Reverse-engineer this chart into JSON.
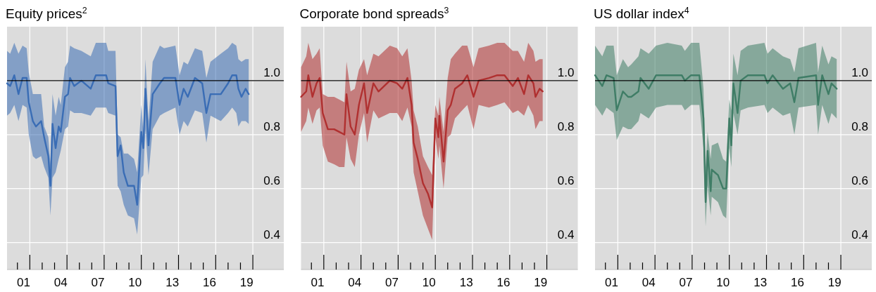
{
  "chart_data": [
    {
      "type": "line",
      "title": "Equity prices$^{2}$",
      "xlim": [
        "2000-03",
        "2022-07"
      ],
      "ylim": [
        0.3,
        1.2
      ],
      "grid": true,
      "yticks": [
        {
          "value": 0.4,
          "label": "0.4"
        },
        {
          "value": 0.6,
          "label": "0.6"
        },
        {
          "value": 0.8,
          "label": "0.8"
        },
        {
          "value": 1,
          "label": "1.0"
        }
      ],
      "xticks": [
        {
          "value": "2001-07",
          "label": "01"
        },
        {
          "value": "2004-07",
          "label": "04"
        },
        {
          "value": "2007-07",
          "label": "07"
        },
        {
          "value": "2010-07",
          "label": "10"
        },
        {
          "value": "2013-07",
          "label": "13"
        },
        {
          "value": "2016-07",
          "label": "16"
        },
        {
          "value": "2019-07",
          "label": "19"
        },
        {
          "value": "2001",
          "label": null
        },
        {
          "value": "2002",
          "label": null
        },
        {
          "value": "2003",
          "label": null
        },
        {
          "value": "2004",
          "label": null
        },
        {
          "value": "2005",
          "label": null
        },
        {
          "value": "2006",
          "label": null
        },
        {
          "value": "2007",
          "label": null
        },
        {
          "value": "2008",
          "label": null
        },
        {
          "value": "2009",
          "label": null
        },
        {
          "value": "2010",
          "label": null
        },
        {
          "value": "2011",
          "label": null
        },
        {
          "value": "2012",
          "label": null
        },
        {
          "value": "2013",
          "label": null
        },
        {
          "value": "2014",
          "label": null
        },
        {
          "value": "2015",
          "label": null
        },
        {
          "value": "2016",
          "label": null
        },
        {
          "value": "2017",
          "label": null
        },
        {
          "value": "2018",
          "label": null
        },
        {
          "value": "2019",
          "label": null
        },
        {
          "value": "2020",
          "label": null
        }
      ],
      "ref_lines": [
        {
          "axis": "y",
          "value": 1,
          "color": "#000000"
        }
      ],
      "x": [
        "2000-03",
        "2000-06",
        "2000-10",
        "2001-02",
        "2001-06",
        "2001-10",
        "2001-12",
        "2002-04",
        "2002-07",
        "2002-12",
        "2003-03",
        "2003-07",
        "2003-09",
        "2003-11",
        "2004-02",
        "2004-05",
        "2004-07",
        "2004-11",
        "2005-02",
        "2005-04",
        "2005-08",
        "2006-03",
        "2006-12",
        "2007-05",
        "2008-03",
        "2008-05",
        "2008-12",
        "2009-02",
        "2009-05",
        "2009-08",
        "2009-12",
        "2010-06",
        "2010-09",
        "2011-01",
        "2011-03",
        "2011-05",
        "2011-08",
        "2011-12",
        "2012-07",
        "2012-11",
        "2013-10",
        "2014-02",
        "2014-06",
        "2014-10",
        "2015-05",
        "2015-12",
        "2016-04",
        "2016-08",
        "2017-06",
        "2018-01",
        "2018-05",
        "2018-09",
        "2018-11",
        "2019-02",
        "2019-06",
        "2019-09"
      ],
      "series": [
        {
          "color": "#3a6db5",
          "values": [
            0.99,
            0.98,
            1.02,
            0.95,
            1.01,
            1.01,
            0.92,
            0.85,
            0.83,
            0.85,
            0.79,
            0.72,
            0.61,
            0.84,
            0.75,
            0.83,
            0.81,
            0.94,
            0.95,
            1.01,
            0.98,
            1.0,
            0.97,
            1.02,
            1.02,
            0.99,
            0.98,
            0.72,
            0.76,
            0.66,
            0.61,
            0.61,
            0.54,
            0.81,
            0.75,
            0.97,
            0.76,
            0.95,
            0.99,
            1.01,
            1.01,
            0.91,
            0.97,
            0.94,
            1.01,
            0.99,
            0.88,
            0.95,
            0.95,
            0.99,
            1.02,
            1.02,
            0.97,
            0.94,
            0.97,
            0.95
          ],
          "upper": [
            1.11,
            1.1,
            1.14,
            1.1,
            1.13,
            1.12,
            1.03,
            0.95,
            0.95,
            0.95,
            0.83,
            0.79,
            0.69,
            0.95,
            0.87,
            0.94,
            0.91,
            1.05,
            1.07,
            1.13,
            1.12,
            1.11,
            1.09,
            1.14,
            1.14,
            1.11,
            1.11,
            0.8,
            0.79,
            0.73,
            0.73,
            0.71,
            0.66,
            0.91,
            0.81,
            1.08,
            0.85,
            1.07,
            1.13,
            1.12,
            1.13,
            1.02,
            1.07,
            1.06,
            1.12,
            1.11,
            1.01,
            1.07,
            1.1,
            1.12,
            1.14,
            1.13,
            1.08,
            1.07,
            1.08,
            1.08
          ],
          "lower": [
            0.87,
            0.88,
            0.91,
            0.85,
            0.91,
            0.9,
            0.8,
            0.72,
            0.71,
            0.72,
            0.68,
            0.64,
            0.5,
            0.64,
            0.66,
            0.71,
            0.74,
            0.82,
            0.83,
            0.89,
            0.88,
            0.88,
            0.87,
            0.9,
            0.9,
            0.88,
            0.87,
            0.61,
            0.59,
            0.54,
            0.5,
            0.49,
            0.43,
            0.64,
            0.65,
            0.82,
            0.65,
            0.82,
            0.87,
            0.88,
            0.9,
            0.8,
            0.85,
            0.83,
            0.89,
            0.88,
            0.77,
            0.87,
            0.85,
            0.88,
            0.9,
            0.88,
            0.83,
            0.85,
            0.85,
            0.84
          ]
        }
      ]
    },
    {
      "type": "line",
      "title": "Corporate bond spreads$^{3}$",
      "xlim": [
        "2000-03",
        "2022-07"
      ],
      "ylim": [
        0.3,
        1.2
      ],
      "grid": true,
      "yticks": [
        {
          "value": 0.4,
          "label": "0.4"
        },
        {
          "value": 0.6,
          "label": "0.6"
        },
        {
          "value": 0.8,
          "label": "0.8"
        },
        {
          "value": 1,
          "label": "1.0"
        }
      ],
      "xticks": [
        {
          "value": "2001-07",
          "label": "01"
        },
        {
          "value": "2004-07",
          "label": "04"
        },
        {
          "value": "2007-07",
          "label": "07"
        },
        {
          "value": "2010-07",
          "label": "10"
        },
        {
          "value": "2013-07",
          "label": "13"
        },
        {
          "value": "2016-07",
          "label": "16"
        },
        {
          "value": "2019-07",
          "label": "19"
        },
        {
          "value": "2001",
          "label": null
        },
        {
          "value": "2002",
          "label": null
        },
        {
          "value": "2003",
          "label": null
        },
        {
          "value": "2004",
          "label": null
        },
        {
          "value": "2005",
          "label": null
        },
        {
          "value": "2006",
          "label": null
        },
        {
          "value": "2007",
          "label": null
        },
        {
          "value": "2008",
          "label": null
        },
        {
          "value": "2009",
          "label": null
        },
        {
          "value": "2010",
          "label": null
        },
        {
          "value": "2011",
          "label": null
        },
        {
          "value": "2012",
          "label": null
        },
        {
          "value": "2013",
          "label": null
        },
        {
          "value": "2014",
          "label": null
        },
        {
          "value": "2015",
          "label": null
        },
        {
          "value": "2016",
          "label": null
        },
        {
          "value": "2017",
          "label": null
        },
        {
          "value": "2018",
          "label": null
        },
        {
          "value": "2019",
          "label": null
        },
        {
          "value": "2020",
          "label": null
        }
      ],
      "ref_lines": [
        {
          "axis": "y",
          "value": 1,
          "color": "#000000"
        }
      ],
      "x": [
        "2000-03",
        "2000-08",
        "2000-10",
        "2001-02",
        "2001-06",
        "2001-09",
        "2001-12",
        "2002-05",
        "2002-11",
        "2003-04",
        "2003-09",
        "2003-11",
        "2004-03",
        "2004-07",
        "2004-11",
        "2005-04",
        "2005-07",
        "2006-01",
        "2006-06",
        "2007-05",
        "2007-12",
        "2008-05",
        "2008-10",
        "2009-02",
        "2009-04",
        "2009-08",
        "2010-01",
        "2010-06",
        "2010-10",
        "2011-01",
        "2011-04",
        "2011-05",
        "2011-09",
        "2012-01",
        "2012-04",
        "2012-08",
        "2013-03",
        "2013-08",
        "2014-02",
        "2014-07",
        "2015-05",
        "2016-01",
        "2016-08",
        "2017-04",
        "2017-09",
        "2018-03",
        "2018-07",
        "2018-12",
        "2019-02",
        "2019-06",
        "2019-09"
      ],
      "series": [
        {
          "color": "#b03030",
          "values": [
            0.94,
            0.96,
            1.02,
            0.94,
            0.99,
            1.01,
            0.88,
            0.82,
            0.82,
            0.81,
            0.8,
            0.95,
            0.83,
            0.8,
            0.91,
            0.99,
            0.88,
            0.99,
            0.96,
            1.0,
            0.99,
            0.97,
            1.01,
            0.91,
            0.77,
            0.71,
            0.62,
            0.58,
            0.53,
            0.86,
            0.79,
            0.87,
            0.7,
            0.89,
            0.91,
            0.97,
            0.99,
            1.02,
            0.94,
            1.0,
            1.01,
            1.02,
            1.02,
            0.98,
            1.01,
            0.95,
            1.02,
            0.99,
            0.94,
            0.97,
            0.96
          ],
          "upper": [
            1.05,
            1.09,
            1.14,
            1.08,
            1.1,
            1.12,
            0.95,
            0.94,
            0.94,
            0.93,
            0.92,
            1.07,
            0.96,
            0.97,
            1.04,
            1.08,
            1.02,
            1.1,
            1.09,
            1.13,
            1.12,
            1.09,
            1.12,
            1.0,
            0.89,
            0.83,
            0.72,
            0.68,
            0.65,
            0.91,
            0.87,
            0.94,
            0.81,
            1.01,
            1.08,
            1.1,
            1.13,
            1.13,
            1.05,
            1.12,
            1.13,
            1.14,
            1.14,
            1.11,
            1.11,
            1.07,
            1.14,
            1.11,
            1.07,
            1.08,
            1.08
          ],
          "lower": [
            0.81,
            0.85,
            0.9,
            0.84,
            0.89,
            0.9,
            0.76,
            0.7,
            0.69,
            0.68,
            0.68,
            0.79,
            0.71,
            0.68,
            0.8,
            0.88,
            0.77,
            0.89,
            0.86,
            0.88,
            0.88,
            0.85,
            0.9,
            0.83,
            0.66,
            0.59,
            0.5,
            0.45,
            0.41,
            0.79,
            0.71,
            0.76,
            0.6,
            0.79,
            0.8,
            0.86,
            0.89,
            0.91,
            0.82,
            0.91,
            0.9,
            0.91,
            0.92,
            0.88,
            0.89,
            0.87,
            0.91,
            0.87,
            0.82,
            0.85,
            0.85
          ]
        }
      ]
    },
    {
      "type": "line",
      "title": "US dollar index$^{4}$",
      "xlim": [
        "2000-03",
        "2022-07"
      ],
      "ylim": [
        0.3,
        1.2
      ],
      "grid": true,
      "yticks": [
        {
          "value": 0.4,
          "label": "0.4"
        },
        {
          "value": 0.6,
          "label": "0.6"
        },
        {
          "value": 0.8,
          "label": "0.8"
        },
        {
          "value": 1,
          "label": "1.0"
        }
      ],
      "xticks": [
        {
          "value": "2001-07",
          "label": "01"
        },
        {
          "value": "2004-07",
          "label": "04"
        },
        {
          "value": "2007-07",
          "label": "07"
        },
        {
          "value": "2010-07",
          "label": "10"
        },
        {
          "value": "2013-07",
          "label": "13"
        },
        {
          "value": "2016-07",
          "label": "16"
        },
        {
          "value": "2019-07",
          "label": "19"
        },
        {
          "value": "2001",
          "label": null
        },
        {
          "value": "2002",
          "label": null
        },
        {
          "value": "2003",
          "label": null
        },
        {
          "value": "2004",
          "label": null
        },
        {
          "value": "2005",
          "label": null
        },
        {
          "value": "2006",
          "label": null
        },
        {
          "value": "2007",
          "label": null
        },
        {
          "value": "2008",
          "label": null
        },
        {
          "value": "2009",
          "label": null
        },
        {
          "value": "2010",
          "label": null
        },
        {
          "value": "2011",
          "label": null
        },
        {
          "value": "2012",
          "label": null
        },
        {
          "value": "2013",
          "label": null
        },
        {
          "value": "2014",
          "label": null
        },
        {
          "value": "2015",
          "label": null
        },
        {
          "value": "2016",
          "label": null
        },
        {
          "value": "2017",
          "label": null
        },
        {
          "value": "2018",
          "label": null
        },
        {
          "value": "2019",
          "label": null
        },
        {
          "value": "2020",
          "label": null
        }
      ],
      "ref_lines": [
        {
          "axis": "y",
          "value": 1,
          "color": "#000000"
        }
      ],
      "x": [
        "2000-03",
        "2000-10",
        "2001-02",
        "2001-09",
        "2001-12",
        "2002-06",
        "2002-11",
        "2003-02",
        "2003-09",
        "2003-11",
        "2004-07",
        "2005-02",
        "2006-01",
        "2007-03",
        "2007-06",
        "2007-12",
        "2008-08",
        "2008-12",
        "2009-02",
        "2009-04",
        "2009-07",
        "2009-08",
        "2010-02",
        "2010-07",
        "2010-10",
        "2011-01",
        "2011-03",
        "2011-05",
        "2011-09",
        "2011-12",
        "2012-07",
        "2013-11",
        "2014-02",
        "2014-07",
        "2015-05",
        "2015-12",
        "2016-04",
        "2016-08",
        "2018-01",
        "2018-03",
        "2018-07",
        "2019-01",
        "2019-04",
        "2019-09"
      ],
      "series": [
        {
          "color": "#3f7d66",
          "values": [
            1.02,
            0.98,
            1.02,
            1.01,
            0.89,
            0.96,
            0.94,
            0.94,
            0.96,
            1.01,
            0.97,
            1.02,
            1.02,
            1.02,
            1.0,
            1.02,
            1.02,
            0.86,
            0.55,
            0.74,
            0.59,
            0.67,
            0.65,
            0.6,
            0.6,
            0.86,
            0.76,
            0.99,
            0.88,
            1.0,
            1.02,
            1.02,
            0.99,
            1.02,
            0.97,
            0.99,
            0.92,
            1.01,
            1.02,
            0.91,
            1.02,
            0.95,
            0.99,
            0.97
          ],
          "upper": [
            1.13,
            1.09,
            1.13,
            1.13,
            1.02,
            1.08,
            1.05,
            1.06,
            1.09,
            1.12,
            1.1,
            1.13,
            1.14,
            1.13,
            1.11,
            1.14,
            1.14,
            0.97,
            0.68,
            0.81,
            0.71,
            0.76,
            0.77,
            0.71,
            0.7,
            0.93,
            0.89,
            1.1,
            1.02,
            1.11,
            1.13,
            1.14,
            1.1,
            1.12,
            1.09,
            1.08,
            1.03,
            1.12,
            1.14,
            1.03,
            1.13,
            1.06,
            1.09,
            1.08
          ],
          "lower": [
            0.91,
            0.87,
            0.9,
            0.88,
            0.78,
            0.83,
            0.82,
            0.82,
            0.85,
            0.88,
            0.86,
            0.9,
            0.91,
            0.91,
            0.89,
            0.91,
            0.91,
            0.75,
            0.46,
            0.61,
            0.5,
            0.57,
            0.55,
            0.5,
            0.49,
            0.75,
            0.68,
            0.88,
            0.8,
            0.89,
            0.9,
            0.91,
            0.88,
            0.9,
            0.87,
            0.88,
            0.8,
            0.9,
            0.91,
            0.8,
            0.91,
            0.84,
            0.88,
            0.86
          ]
        }
      ]
    }
  ]
}
